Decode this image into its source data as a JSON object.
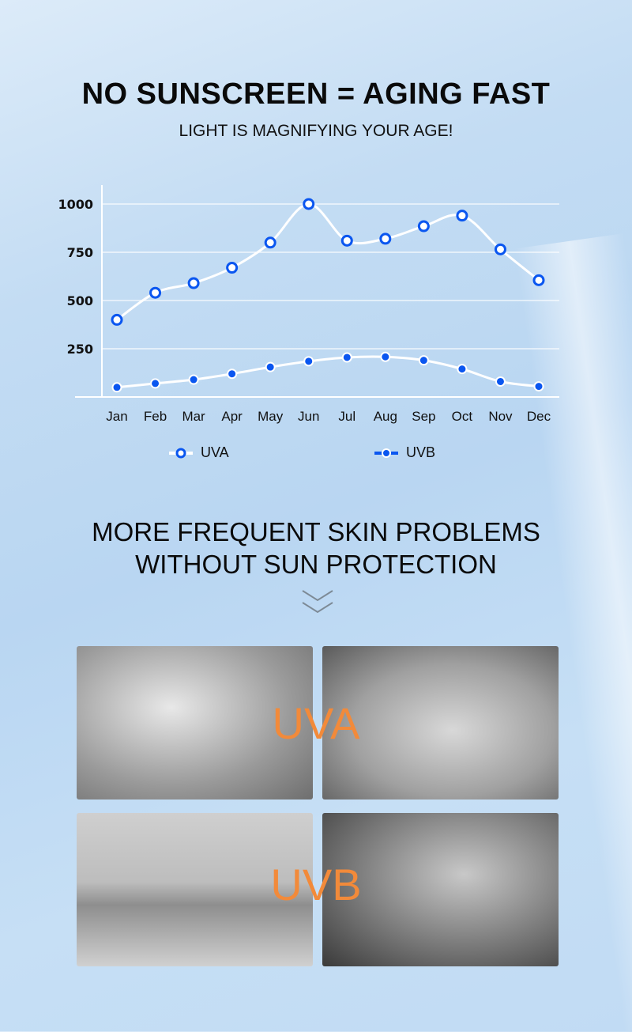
{
  "header": {
    "title": "NO SUNSCREEN = AGING FAST",
    "subtitle": "LIGHT IS MAGNIFYING YOUR AGE!"
  },
  "chart_data": {
    "type": "line",
    "categories": [
      "Jan",
      "Feb",
      "Mar",
      "Apr",
      "May",
      "Jun",
      "Jul",
      "Aug",
      "Sep",
      "Oct",
      "Nov",
      "Dec"
    ],
    "series": [
      {
        "name": "UVA",
        "values": [
          400,
          540,
          590,
          670,
          800,
          1000,
          810,
          820,
          885,
          940,
          765,
          605
        ]
      },
      {
        "name": "UVB",
        "values": [
          50,
          70,
          90,
          120,
          155,
          185,
          205,
          208,
          190,
          145,
          80,
          55
        ]
      }
    ],
    "yticks": [
      250,
      500,
      750,
      1000
    ],
    "ylim": [
      0,
      1000
    ],
    "grid": true,
    "legend": "bottom",
    "colors": {
      "marker": "#0a56f0",
      "line": "#ffffff"
    }
  },
  "section": {
    "line1": "MORE FREQUENT SKIN PROBLEMS",
    "line2": "WITHOUT SUN PROTECTION"
  },
  "photos": {
    "uva_label": "UVA",
    "uvb_label": "UVB"
  }
}
